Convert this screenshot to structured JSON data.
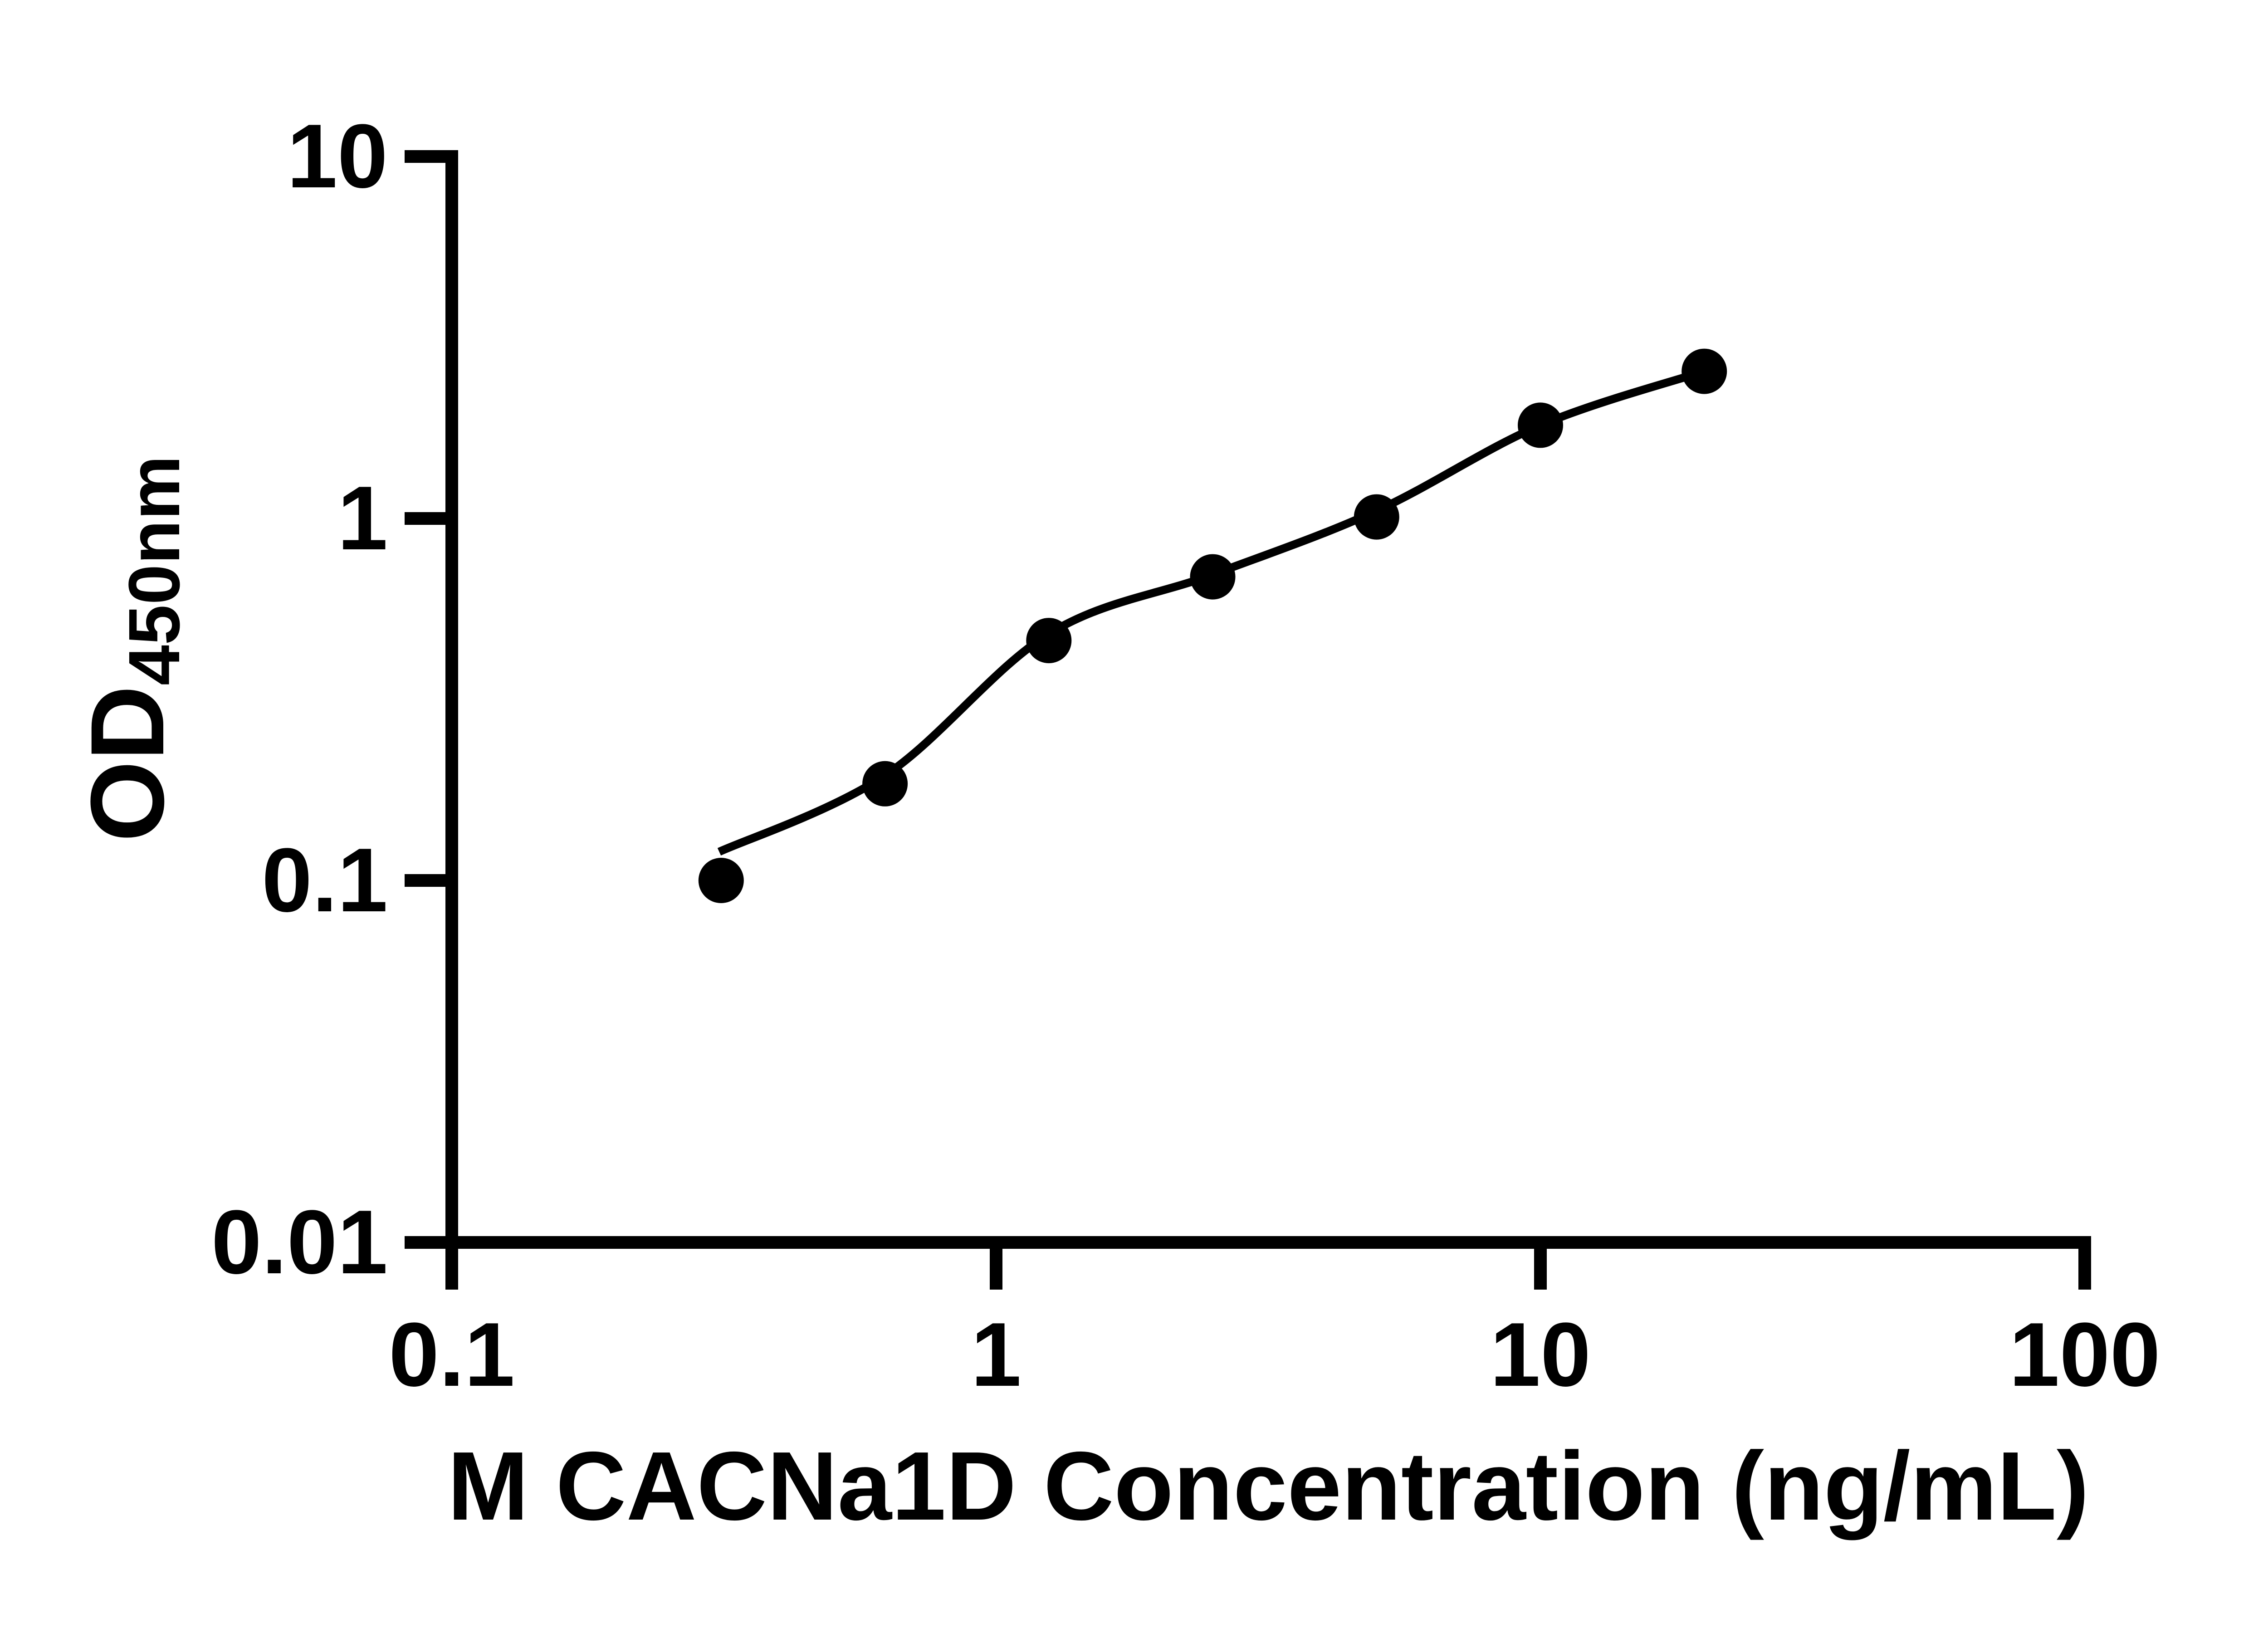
{
  "chart_data": {
    "type": "scatter",
    "title": "",
    "xlabel": "M CACNa1D Concentration (ng/mL)",
    "ylabel": "OD450nm",
    "ylabel_main": "OD",
    "ylabel_sub": "450nm",
    "xscale": "log",
    "yscale": "log",
    "xlim": [
      0.1,
      100
    ],
    "ylim": [
      0.01,
      10
    ],
    "x_tick_labels": [
      "0.1",
      "1",
      "10",
      "100"
    ],
    "x_tick_values": [
      0.1,
      1,
      10,
      100
    ],
    "y_tick_labels": [
      "10",
      "1",
      "0.1",
      "0.01"
    ],
    "y_tick_values": [
      10,
      1,
      0.1,
      0.01
    ],
    "grid": false,
    "legend": "none",
    "marker": "circle",
    "marker_color": "#000000",
    "line_color": "#000000",
    "axis_color": "#000000",
    "background_color": "#FFFFFF",
    "points": {
      "x": [
        0.3125,
        0.625,
        1.25,
        2.5,
        5,
        10,
        20
      ],
      "od": [
        0.1,
        0.185,
        0.46,
        0.69,
        1.01,
        1.81,
        2.55
      ]
    },
    "fit_curve": {
      "x": [
        0.31,
        0.625,
        1.25,
        2.5,
        5,
        10,
        20
      ],
      "od": [
        0.12,
        0.195,
        0.48,
        0.7,
        1.05,
        1.81,
        2.55
      ]
    }
  }
}
